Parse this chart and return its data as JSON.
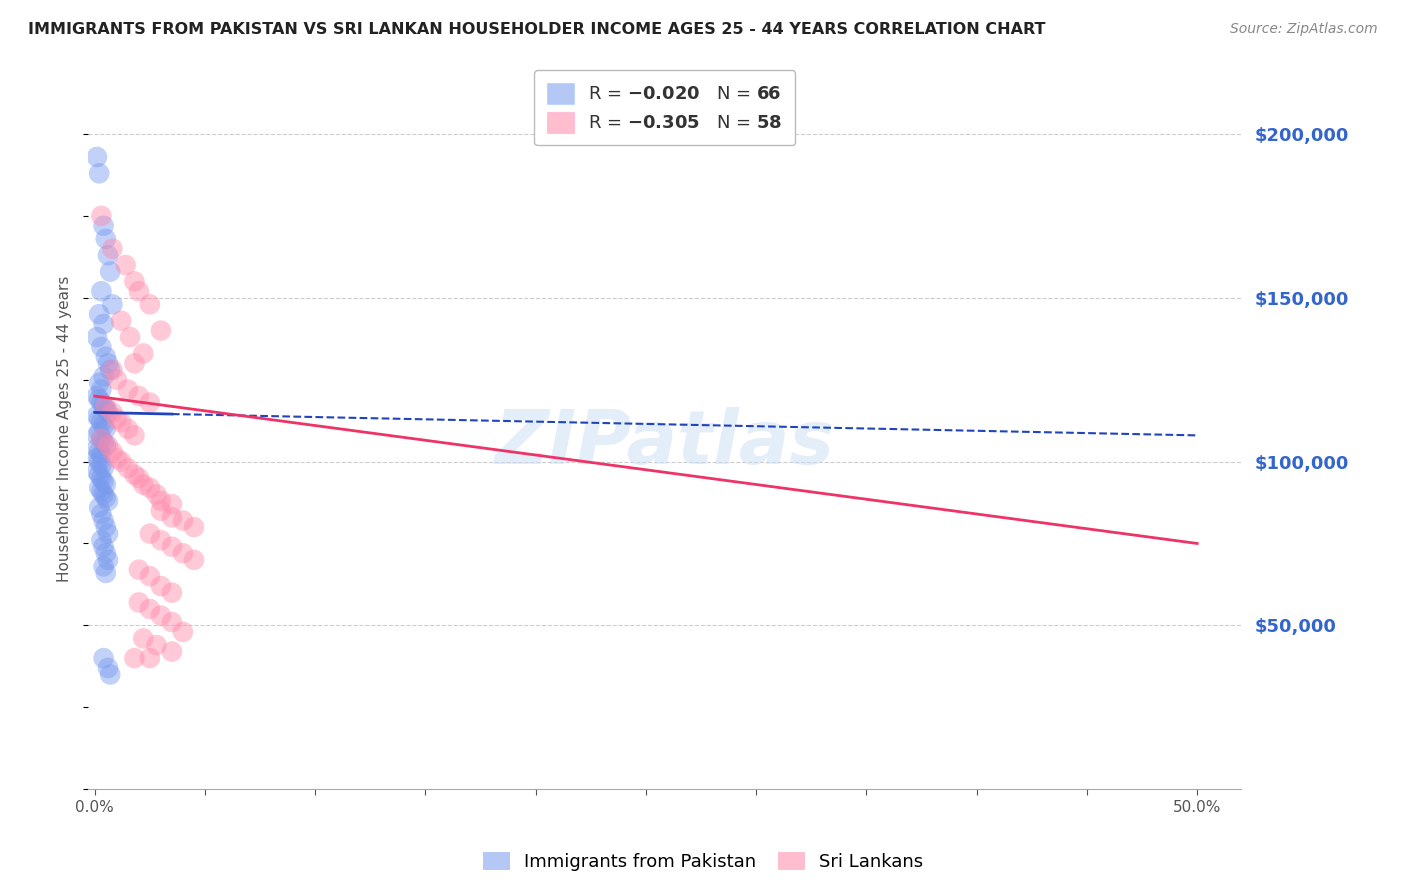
{
  "title": "IMMIGRANTS FROM PAKISTAN VS SRI LANKAN HOUSEHOLDER INCOME AGES 25 - 44 YEARS CORRELATION CHART",
  "source": "Source: ZipAtlas.com",
  "ylabel": "Householder Income Ages 25 - 44 years",
  "ylim": [
    0,
    220000
  ],
  "xlim": [
    -0.003,
    0.52
  ],
  "watermark": "ZIPatlas",
  "pakistan_color": "#7799ee",
  "srilanka_color": "#ff88aa",
  "pakistan_scatter": [
    [
      0.001,
      193000
    ],
    [
      0.002,
      188000
    ],
    [
      0.004,
      172000
    ],
    [
      0.005,
      168000
    ],
    [
      0.006,
      163000
    ],
    [
      0.007,
      158000
    ],
    [
      0.003,
      152000
    ],
    [
      0.008,
      148000
    ],
    [
      0.002,
      145000
    ],
    [
      0.004,
      142000
    ],
    [
      0.001,
      138000
    ],
    [
      0.003,
      135000
    ],
    [
      0.005,
      132000
    ],
    [
      0.006,
      130000
    ],
    [
      0.007,
      128000
    ],
    [
      0.004,
      126000
    ],
    [
      0.002,
      124000
    ],
    [
      0.003,
      122000
    ],
    [
      0.001,
      120000
    ],
    [
      0.002,
      119000
    ],
    [
      0.003,
      118000
    ],
    [
      0.004,
      117000
    ],
    [
      0.005,
      116000
    ],
    [
      0.006,
      115000
    ],
    [
      0.001,
      114000
    ],
    [
      0.002,
      113000
    ],
    [
      0.003,
      112000
    ],
    [
      0.004,
      111000
    ],
    [
      0.005,
      110000
    ],
    [
      0.002,
      109000
    ],
    [
      0.001,
      108000
    ],
    [
      0.003,
      107000
    ],
    [
      0.004,
      106000
    ],
    [
      0.005,
      105000
    ],
    [
      0.001,
      104000
    ],
    [
      0.002,
      103000
    ],
    [
      0.003,
      102000
    ],
    [
      0.001,
      101000
    ],
    [
      0.002,
      100000
    ],
    [
      0.003,
      99000
    ],
    [
      0.004,
      98000
    ],
    [
      0.001,
      97000
    ],
    [
      0.002,
      96000
    ],
    [
      0.003,
      95000
    ],
    [
      0.004,
      94000
    ],
    [
      0.005,
      93000
    ],
    [
      0.002,
      92000
    ],
    [
      0.003,
      91000
    ],
    [
      0.004,
      90000
    ],
    [
      0.005,
      89000
    ],
    [
      0.006,
      88000
    ],
    [
      0.002,
      86000
    ],
    [
      0.003,
      84000
    ],
    [
      0.004,
      82000
    ],
    [
      0.005,
      80000
    ],
    [
      0.006,
      78000
    ],
    [
      0.003,
      76000
    ],
    [
      0.004,
      74000
    ],
    [
      0.005,
      72000
    ],
    [
      0.006,
      70000
    ],
    [
      0.004,
      68000
    ],
    [
      0.005,
      66000
    ],
    [
      0.004,
      40000
    ],
    [
      0.006,
      37000
    ],
    [
      0.007,
      35000
    ]
  ],
  "srilanka_scatter": [
    [
      0.003,
      175000
    ],
    [
      0.008,
      165000
    ],
    [
      0.014,
      160000
    ],
    [
      0.018,
      155000
    ],
    [
      0.02,
      152000
    ],
    [
      0.025,
      148000
    ],
    [
      0.012,
      143000
    ],
    [
      0.03,
      140000
    ],
    [
      0.016,
      138000
    ],
    [
      0.022,
      133000
    ],
    [
      0.018,
      130000
    ],
    [
      0.008,
      128000
    ],
    [
      0.01,
      125000
    ],
    [
      0.015,
      122000
    ],
    [
      0.02,
      120000
    ],
    [
      0.025,
      118000
    ],
    [
      0.005,
      117000
    ],
    [
      0.008,
      115000
    ],
    [
      0.01,
      113000
    ],
    [
      0.012,
      112000
    ],
    [
      0.015,
      110000
    ],
    [
      0.018,
      108000
    ],
    [
      0.003,
      107000
    ],
    [
      0.006,
      105000
    ],
    [
      0.008,
      103000
    ],
    [
      0.01,
      101000
    ],
    [
      0.012,
      100000
    ],
    [
      0.015,
      98000
    ],
    [
      0.018,
      96000
    ],
    [
      0.02,
      95000
    ],
    [
      0.022,
      93000
    ],
    [
      0.025,
      92000
    ],
    [
      0.028,
      90000
    ],
    [
      0.03,
      88000
    ],
    [
      0.035,
      87000
    ],
    [
      0.03,
      85000
    ],
    [
      0.035,
      83000
    ],
    [
      0.04,
      82000
    ],
    [
      0.045,
      80000
    ],
    [
      0.025,
      78000
    ],
    [
      0.03,
      76000
    ],
    [
      0.035,
      74000
    ],
    [
      0.04,
      72000
    ],
    [
      0.045,
      70000
    ],
    [
      0.02,
      67000
    ],
    [
      0.025,
      65000
    ],
    [
      0.03,
      62000
    ],
    [
      0.035,
      60000
    ],
    [
      0.02,
      57000
    ],
    [
      0.025,
      55000
    ],
    [
      0.03,
      53000
    ],
    [
      0.035,
      51000
    ],
    [
      0.04,
      48000
    ],
    [
      0.022,
      46000
    ],
    [
      0.028,
      44000
    ],
    [
      0.035,
      42000
    ],
    [
      0.018,
      40000
    ],
    [
      0.025,
      40000
    ]
  ],
  "background_color": "#ffffff",
  "grid_color": "#cccccc",
  "title_color": "#333333"
}
